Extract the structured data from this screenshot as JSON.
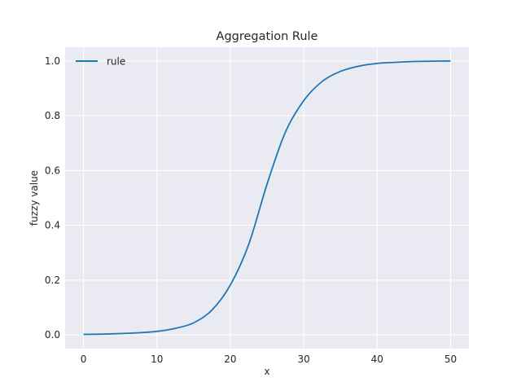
{
  "chart_data": {
    "type": "line",
    "title": "Aggregation Rule",
    "xlabel": "x",
    "ylabel": "fuzzy value",
    "xlim": [
      -2.5,
      52.5
    ],
    "ylim": [
      -0.05,
      1.05
    ],
    "xticks": [
      0,
      10,
      20,
      30,
      40,
      50
    ],
    "yticks": [
      0.0,
      0.2,
      0.4,
      0.6,
      0.8,
      1.0
    ],
    "xtick_labels": [
      "0",
      "10",
      "20",
      "30",
      "40",
      "50"
    ],
    "ytick_labels": [
      "0.0",
      "0.2",
      "0.4",
      "0.6",
      "0.8",
      "1.0"
    ],
    "grid": true,
    "legend_position": "top-left",
    "background_color": "#eaeaf2",
    "grid_color": "#ffffff",
    "series": [
      {
        "name": "rule",
        "color": "#1f77b4",
        "x": [
          0,
          2.5,
          5,
          7.5,
          10,
          12.5,
          15,
          17.5,
          20,
          22.5,
          25,
          27.5,
          30,
          32.5,
          35,
          37.5,
          40,
          42.5,
          45,
          47.5,
          50
        ],
        "y": [
          0.002,
          0.003,
          0.005,
          0.008,
          0.013,
          0.024,
          0.044,
          0.091,
          0.182,
          0.33,
          0.55,
          0.74,
          0.855,
          0.925,
          0.962,
          0.981,
          0.991,
          0.995,
          0.998,
          0.999,
          1.0
        ]
      }
    ]
  }
}
